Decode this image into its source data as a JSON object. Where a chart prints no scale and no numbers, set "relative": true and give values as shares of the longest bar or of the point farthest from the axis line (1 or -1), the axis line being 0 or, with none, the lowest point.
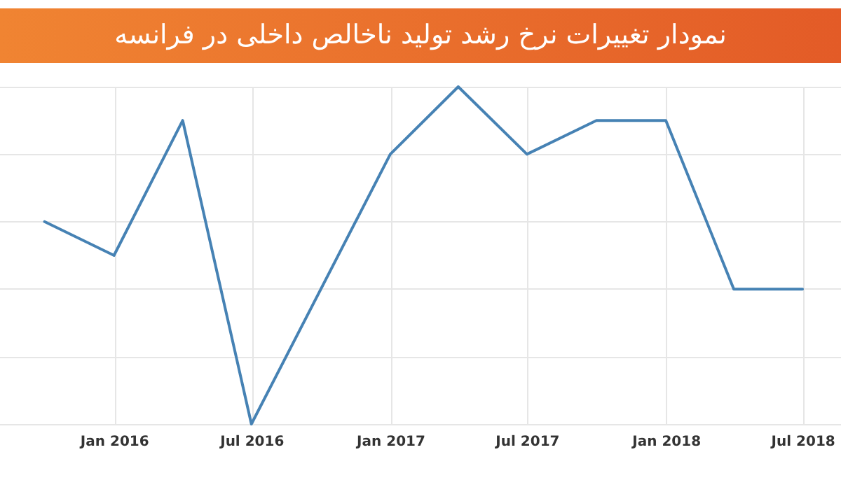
{
  "chart_data": {
    "type": "line",
    "title": "نمودار تغییرات نرخ رشد تولید ناخالص داخلی در فرانسه",
    "relative": true,
    "x": [
      "2015-09-30",
      "2015-12-31",
      "2016-03-31",
      "2016-06-30",
      "2016-12-31",
      "2017-03-31",
      "2017-06-30",
      "2017-09-30",
      "2017-12-31",
      "2018-03-31",
      "2018-06-30"
    ],
    "series": [
      {
        "color": "#4682b4",
        "values": [
          0.6,
          0.5,
          0.9,
          0,
          0.8,
          1,
          0.8,
          0.9,
          0.9,
          0.4,
          0.4
        ]
      }
    ],
    "xlim": [
      "2015-08-02",
      "2018-08-20"
    ],
    "xticks": [
      {
        "value": "2016-01-01",
        "label": "Jan 2016"
      },
      {
        "value": "2016-07-01",
        "label": "Jul 2016"
      },
      {
        "value": "2017-01-01",
        "label": "Jan 2017"
      },
      {
        "value": "2017-07-01",
        "label": "Jul 2017"
      },
      {
        "value": "2018-01-01",
        "label": "Jan 2018"
      },
      {
        "value": "2018-07-01",
        "label": "Jul 2018"
      }
    ],
    "grid": true,
    "marker": "none",
    "line_style": "solid"
  }
}
